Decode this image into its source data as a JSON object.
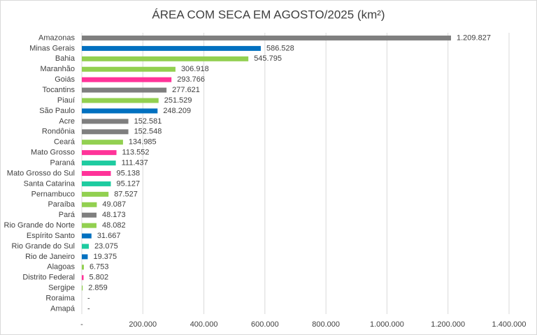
{
  "chart_data": {
    "type": "hbar",
    "title": "ÁREA COM SECA EM AGOSTO/2025 (km²)",
    "categories": [
      "Amazonas",
      "Minas Gerais",
      "Bahia",
      "Maranhão",
      "Goiás",
      "Tocantins",
      "Piauí",
      "São Paulo",
      "Acre",
      "Rondônia",
      "Ceará",
      "Mato Grosso",
      "Paraná",
      "Mato Grosso do Sul",
      "Santa Catarina",
      "Pernambuco",
      "Paraíba",
      "Pará",
      "Rio Grande do Norte",
      "Espírito Santo",
      "Rio Grande do Sul",
      "Rio de Janeiro",
      "Alagoas",
      "Distrito Federal",
      "Sergipe",
      "Roraima",
      "Amapá"
    ],
    "values": [
      1209827,
      586528,
      545795,
      306918,
      293766,
      277621,
      251529,
      248209,
      152581,
      152548,
      134985,
      113552,
      111437,
      95138,
      95127,
      87527,
      49087,
      48173,
      48082,
      31667,
      23075,
      19375,
      6753,
      5802,
      2859,
      0,
      0
    ],
    "value_labels": [
      "1.209.827",
      "586.528",
      "545.795",
      "306.918",
      "293.766",
      "277.621",
      "251.529",
      "248.209",
      "152.581",
      "152.548",
      "134.985",
      "113.552",
      "111.437",
      "95.138",
      "95.127",
      "87.527",
      "49.087",
      "48.173",
      "48.082",
      "31.667",
      "23.075",
      "19.375",
      "6.753",
      "5.802",
      "2.859",
      "-",
      "-"
    ],
    "colors": [
      "#7f7f7f",
      "#0070c0",
      "#92d050",
      "#92d050",
      "#ff3399",
      "#7f7f7f",
      "#92d050",
      "#0070c0",
      "#7f7f7f",
      "#7f7f7f",
      "#92d050",
      "#ff3399",
      "#1ecba0",
      "#ff3399",
      "#1ecba0",
      "#92d050",
      "#92d050",
      "#7f7f7f",
      "#92d050",
      "#0070c0",
      "#1ecba0",
      "#0070c0",
      "#92d050",
      "#ff3399",
      "#92d050",
      "#7f7f7f",
      "#7f7f7f"
    ],
    "xlim": [
      0,
      1400000
    ],
    "xticks": [
      {
        "value": 0,
        "label": "-"
      },
      {
        "value": 200000,
        "label": "200.000"
      },
      {
        "value": 400000,
        "label": "400.000"
      },
      {
        "value": 600000,
        "label": "600.000"
      },
      {
        "value": 800000,
        "label": "800.000"
      },
      {
        "value": 1000000,
        "label": "1.000.000"
      },
      {
        "value": 1200000,
        "label": "1.200.000"
      },
      {
        "value": 1400000,
        "label": "1.400.000"
      }
    ],
    "grid": true
  }
}
